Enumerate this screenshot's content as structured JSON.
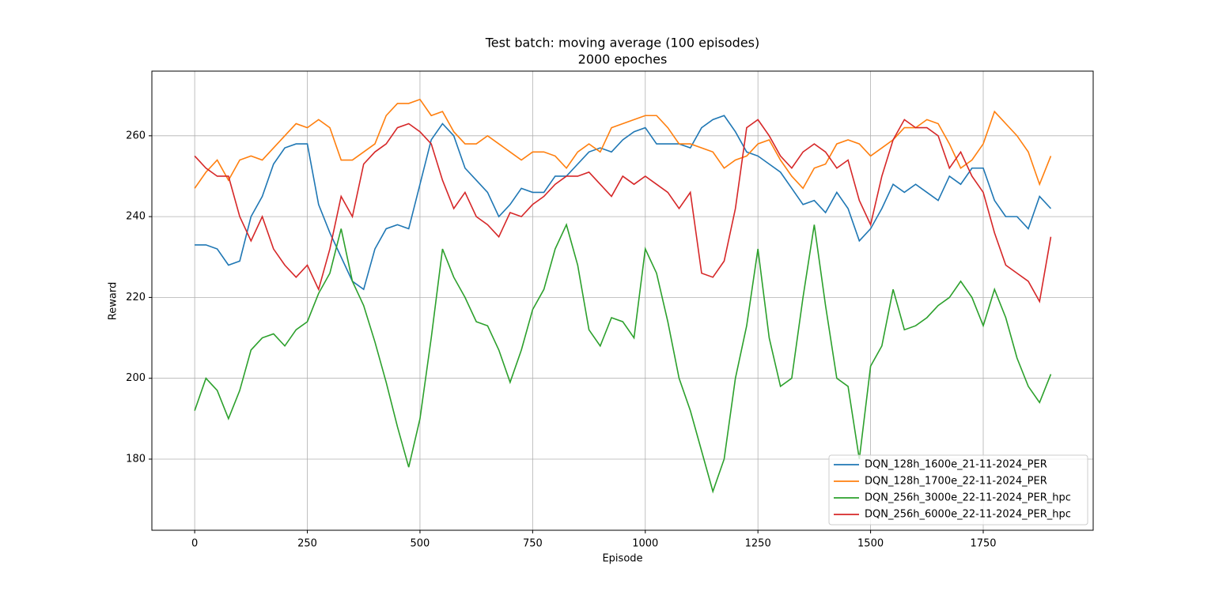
{
  "chart_data": {
    "type": "line",
    "title": "Test batch: moving average (100 episodes)",
    "subtitle": "2000 epoches",
    "x_label": "Episode",
    "y_label": "Reward",
    "x": [
      0,
      25,
      50,
      75,
      100,
      125,
      150,
      175,
      200,
      225,
      250,
      275,
      300,
      325,
      350,
      375,
      400,
      425,
      450,
      475,
      500,
      525,
      550,
      575,
      600,
      625,
      650,
      675,
      700,
      725,
      750,
      775,
      800,
      825,
      850,
      875,
      900,
      925,
      950,
      975,
      1000,
      1025,
      1050,
      1075,
      1100,
      1125,
      1150,
      1175,
      1200,
      1225,
      1250,
      1275,
      1300,
      1325,
      1350,
      1375,
      1400,
      1425,
      1450,
      1475,
      1500,
      1525,
      1550,
      1575,
      1600,
      1625,
      1650,
      1675,
      1700,
      1725,
      1750,
      1775,
      1800,
      1825,
      1850,
      1875,
      1900
    ],
    "series": [
      {
        "name": "DQN_128h_1600e_21-11-2024_PER",
        "color": "#1f77b4",
        "values": [
          233,
          233,
          232,
          228,
          229,
          240,
          245,
          253,
          257,
          258,
          258,
          243,
          236,
          230,
          224,
          222,
          232,
          237,
          238,
          237,
          248,
          259,
          263,
          260,
          252,
          249,
          246,
          240,
          243,
          247,
          246,
          246,
          250,
          250,
          253,
          256,
          257,
          256,
          259,
          261,
          262,
          258,
          258,
          258,
          257,
          262,
          264,
          265,
          261,
          256,
          255,
          253,
          251,
          247,
          243,
          244,
          241,
          246,
          242,
          234,
          237,
          242,
          248,
          246,
          248,
          246,
          244,
          250,
          248,
          252,
          252,
          244,
          240,
          240,
          237,
          245,
          242
        ]
      },
      {
        "name": "DQN_128h_1700e_22-11-2024_PER",
        "color": "#ff7f0e",
        "values": [
          247,
          251,
          254,
          249,
          254,
          255,
          254,
          257,
          260,
          263,
          262,
          264,
          262,
          254,
          254,
          256,
          258,
          265,
          268,
          268,
          269,
          265,
          266,
          261,
          258,
          258,
          260,
          258,
          256,
          254,
          256,
          256,
          255,
          252,
          256,
          258,
          256,
          262,
          263,
          264,
          265,
          265,
          262,
          258,
          258,
          257,
          256,
          252,
          254,
          255,
          258,
          259,
          254,
          250,
          247,
          252,
          253,
          258,
          259,
          258,
          255,
          257,
          259,
          262,
          262,
          264,
          263,
          258,
          252,
          254,
          258,
          266,
          263,
          260,
          256,
          248,
          255
        ]
      },
      {
        "name": "DQN_256h_3000e_22-11-2024_PER_hpc",
        "color": "#2ca02c",
        "values": [
          192,
          200,
          197,
          190,
          197,
          207,
          210,
          211,
          208,
          212,
          214,
          221,
          226,
          237,
          224,
          218,
          209,
          199,
          188,
          178,
          190,
          210,
          232,
          225,
          220,
          214,
          213,
          207,
          199,
          207,
          217,
          222,
          232,
          238,
          228,
          212,
          208,
          215,
          214,
          210,
          232,
          226,
          214,
          200,
          192,
          182,
          172,
          180,
          200,
          213,
          232,
          210,
          198,
          200,
          220,
          238,
          218,
          200,
          198,
          180,
          203,
          208,
          222,
          212,
          213,
          215,
          218,
          220,
          224,
          220,
          213,
          222,
          215,
          205,
          198,
          194,
          201
        ]
      },
      {
        "name": "DQN_256h_6000e_22-11-2024_PER_hpc",
        "color": "#d62728",
        "values": [
          255,
          252,
          250,
          250,
          240,
          234,
          240,
          232,
          228,
          225,
          228,
          222,
          232,
          245,
          240,
          253,
          256,
          258,
          262,
          263,
          261,
          258,
          249,
          242,
          246,
          240,
          238,
          235,
          241,
          240,
          243,
          245,
          248,
          250,
          250,
          251,
          248,
          245,
          250,
          248,
          250,
          248,
          246,
          242,
          246,
          226,
          225,
          229,
          242,
          262,
          264,
          260,
          255,
          252,
          256,
          258,
          256,
          252,
          254,
          244,
          238,
          250,
          259,
          264,
          262,
          262,
          260,
          252,
          256,
          250,
          246,
          236,
          228,
          226,
          224,
          219,
          235
        ]
      }
    ],
    "xlim": [
      -95,
      1994
    ],
    "ylim": [
      162.4,
      276.0
    ],
    "xticks": [
      0,
      250,
      500,
      750,
      1000,
      1250,
      1500,
      1750
    ],
    "yticks": [
      180,
      200,
      220,
      240,
      260
    ],
    "grid": true,
    "legend": "lower right"
  }
}
